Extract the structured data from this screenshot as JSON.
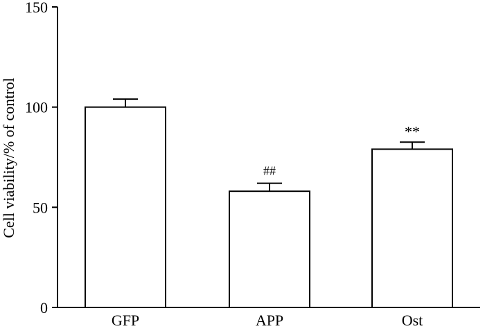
{
  "chart_data": {
    "type": "bar",
    "categories": [
      "GFP",
      "APP",
      "Ost"
    ],
    "values": [
      100,
      58,
      79
    ],
    "error": [
      4,
      4,
      3.5
    ],
    "annotations": [
      "",
      "##",
      "**"
    ],
    "xlabel": "",
    "ylabel": "Cell viability/% of control",
    "ylim": [
      0,
      150
    ],
    "yticks": [
      "0",
      "50",
      "100",
      "150"
    ],
    "grid": false,
    "colors": {
      "bar_fill": "#ffffff",
      "bar_stroke": "#000000",
      "axis": "#000000"
    }
  }
}
